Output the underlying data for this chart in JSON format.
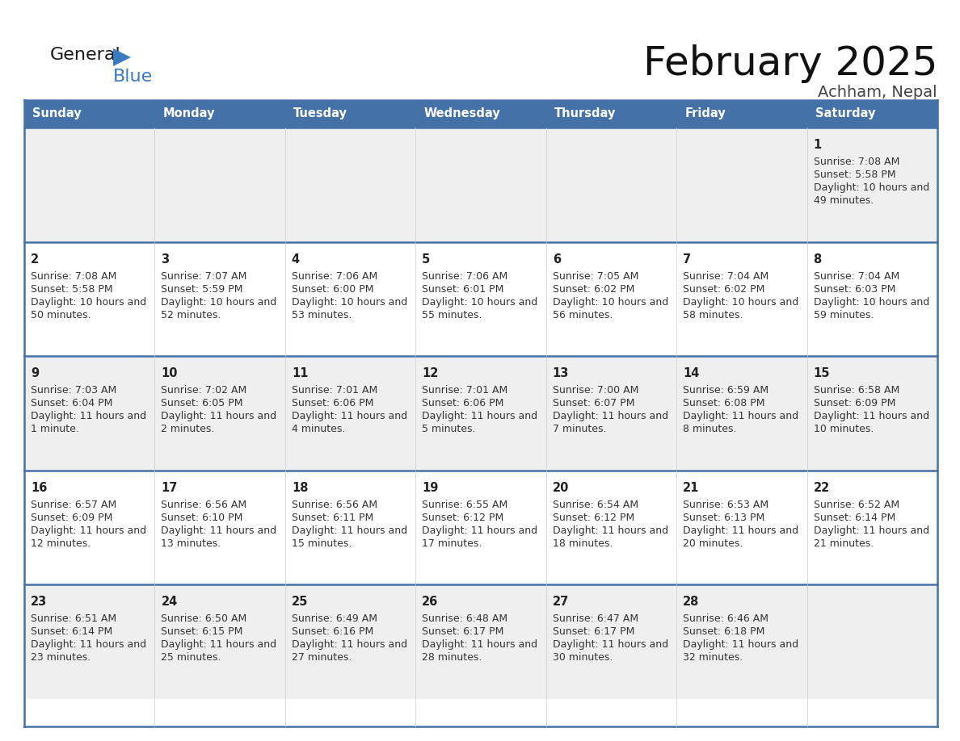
{
  "title": "February 2025",
  "subtitle": "Achham, Nepal",
  "header_bg": "#4472a8",
  "header_text_color": "#ffffff",
  "row_bg_odd": "#efefef",
  "row_bg_even": "#ffffff",
  "border_color": "#4472a8",
  "text_color": "#333333",
  "day_names": [
    "Sunday",
    "Monday",
    "Tuesday",
    "Wednesday",
    "Thursday",
    "Friday",
    "Saturday"
  ],
  "days": [
    {
      "day": 1,
      "col": 6,
      "row": 0,
      "sunrise": "7:08 AM",
      "sunset": "5:58 PM",
      "daylight": "10 hours and 49 minutes"
    },
    {
      "day": 2,
      "col": 0,
      "row": 1,
      "sunrise": "7:08 AM",
      "sunset": "5:58 PM",
      "daylight": "10 hours and 50 minutes"
    },
    {
      "day": 3,
      "col": 1,
      "row": 1,
      "sunrise": "7:07 AM",
      "sunset": "5:59 PM",
      "daylight": "10 hours and 52 minutes"
    },
    {
      "day": 4,
      "col": 2,
      "row": 1,
      "sunrise": "7:06 AM",
      "sunset": "6:00 PM",
      "daylight": "10 hours and 53 minutes"
    },
    {
      "day": 5,
      "col": 3,
      "row": 1,
      "sunrise": "7:06 AM",
      "sunset": "6:01 PM",
      "daylight": "10 hours and 55 minutes"
    },
    {
      "day": 6,
      "col": 4,
      "row": 1,
      "sunrise": "7:05 AM",
      "sunset": "6:02 PM",
      "daylight": "10 hours and 56 minutes"
    },
    {
      "day": 7,
      "col": 5,
      "row": 1,
      "sunrise": "7:04 AM",
      "sunset": "6:02 PM",
      "daylight": "10 hours and 58 minutes"
    },
    {
      "day": 8,
      "col": 6,
      "row": 1,
      "sunrise": "7:04 AM",
      "sunset": "6:03 PM",
      "daylight": "10 hours and 59 minutes"
    },
    {
      "day": 9,
      "col": 0,
      "row": 2,
      "sunrise": "7:03 AM",
      "sunset": "6:04 PM",
      "daylight": "11 hours and 1 minute"
    },
    {
      "day": 10,
      "col": 1,
      "row": 2,
      "sunrise": "7:02 AM",
      "sunset": "6:05 PM",
      "daylight": "11 hours and 2 minutes"
    },
    {
      "day": 11,
      "col": 2,
      "row": 2,
      "sunrise": "7:01 AM",
      "sunset": "6:06 PM",
      "daylight": "11 hours and 4 minutes"
    },
    {
      "day": 12,
      "col": 3,
      "row": 2,
      "sunrise": "7:01 AM",
      "sunset": "6:06 PM",
      "daylight": "11 hours and 5 minutes"
    },
    {
      "day": 13,
      "col": 4,
      "row": 2,
      "sunrise": "7:00 AM",
      "sunset": "6:07 PM",
      "daylight": "11 hours and 7 minutes"
    },
    {
      "day": 14,
      "col": 5,
      "row": 2,
      "sunrise": "6:59 AM",
      "sunset": "6:08 PM",
      "daylight": "11 hours and 8 minutes"
    },
    {
      "day": 15,
      "col": 6,
      "row": 2,
      "sunrise": "6:58 AM",
      "sunset": "6:09 PM",
      "daylight": "11 hours and 10 minutes"
    },
    {
      "day": 16,
      "col": 0,
      "row": 3,
      "sunrise": "6:57 AM",
      "sunset": "6:09 PM",
      "daylight": "11 hours and 12 minutes"
    },
    {
      "day": 17,
      "col": 1,
      "row": 3,
      "sunrise": "6:56 AM",
      "sunset": "6:10 PM",
      "daylight": "11 hours and 13 minutes"
    },
    {
      "day": 18,
      "col": 2,
      "row": 3,
      "sunrise": "6:56 AM",
      "sunset": "6:11 PM",
      "daylight": "11 hours and 15 minutes"
    },
    {
      "day": 19,
      "col": 3,
      "row": 3,
      "sunrise": "6:55 AM",
      "sunset": "6:12 PM",
      "daylight": "11 hours and 17 minutes"
    },
    {
      "day": 20,
      "col": 4,
      "row": 3,
      "sunrise": "6:54 AM",
      "sunset": "6:12 PM",
      "daylight": "11 hours and 18 minutes"
    },
    {
      "day": 21,
      "col": 5,
      "row": 3,
      "sunrise": "6:53 AM",
      "sunset": "6:13 PM",
      "daylight": "11 hours and 20 minutes"
    },
    {
      "day": 22,
      "col": 6,
      "row": 3,
      "sunrise": "6:52 AM",
      "sunset": "6:14 PM",
      "daylight": "11 hours and 21 minutes"
    },
    {
      "day": 23,
      "col": 0,
      "row": 4,
      "sunrise": "6:51 AM",
      "sunset": "6:14 PM",
      "daylight": "11 hours and 23 minutes"
    },
    {
      "day": 24,
      "col": 1,
      "row": 4,
      "sunrise": "6:50 AM",
      "sunset": "6:15 PM",
      "daylight": "11 hours and 25 minutes"
    },
    {
      "day": 25,
      "col": 2,
      "row": 4,
      "sunrise": "6:49 AM",
      "sunset": "6:16 PM",
      "daylight": "11 hours and 27 minutes"
    },
    {
      "day": 26,
      "col": 3,
      "row": 4,
      "sunrise": "6:48 AM",
      "sunset": "6:17 PM",
      "daylight": "11 hours and 28 minutes"
    },
    {
      "day": 27,
      "col": 4,
      "row": 4,
      "sunrise": "6:47 AM",
      "sunset": "6:17 PM",
      "daylight": "11 hours and 30 minutes"
    },
    {
      "day": 28,
      "col": 5,
      "row": 4,
      "sunrise": "6:46 AM",
      "sunset": "6:18 PM",
      "daylight": "11 hours and 32 minutes"
    }
  ]
}
